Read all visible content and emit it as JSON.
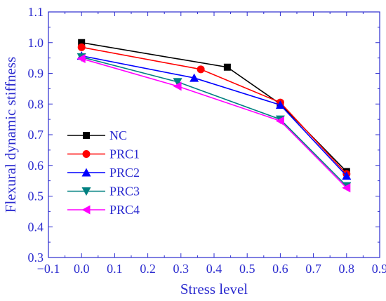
{
  "chart_data": {
    "type": "line",
    "xlabel": "Stress level",
    "ylabel": "Flexural dynamic stiffness",
    "xlim": [
      -0.1,
      0.9
    ],
    "ylim": [
      0.3,
      1.1
    ],
    "xticks": [
      -0.1,
      0.0,
      0.1,
      0.2,
      0.3,
      0.4,
      0.5,
      0.6,
      0.7,
      0.8,
      0.9
    ],
    "yticks": [
      0.3,
      0.4,
      0.5,
      0.6,
      0.7,
      0.8,
      0.9,
      1.0,
      1.1
    ],
    "xtick_labels": [
      "−0.1",
      "0.0",
      "0.1",
      "0.2",
      "0.3",
      "0.4",
      "0.5",
      "0.6",
      "0.7",
      "0.8",
      "0.9"
    ],
    "ytick_labels": [
      "0.3",
      "0.4",
      "0.5",
      "0.6",
      "0.7",
      "0.8",
      "0.9",
      "1.0",
      "1.1"
    ],
    "grid": false,
    "legend_position": "bottom-left",
    "axis_color": "#2b2bcf",
    "series": [
      {
        "name": "NC",
        "color": "#000000",
        "marker": "square",
        "x": [
          0.0,
          0.44,
          0.6,
          0.8
        ],
        "y": [
          1.0,
          0.92,
          0.8,
          0.58
        ]
      },
      {
        "name": "PRC1",
        "color": "#ff0000",
        "marker": "circle",
        "x": [
          0.0,
          0.36,
          0.6,
          0.8
        ],
        "y": [
          0.985,
          0.913,
          0.805,
          0.572
        ]
      },
      {
        "name": "PRC2",
        "color": "#0000ff",
        "marker": "triangle-up",
        "x": [
          0.0,
          0.34,
          0.6,
          0.8
        ],
        "y": [
          0.957,
          0.885,
          0.797,
          0.566
        ]
      },
      {
        "name": "PRC3",
        "color": "#008080",
        "marker": "triangle-down",
        "x": [
          0.0,
          0.29,
          0.6,
          0.8
        ],
        "y": [
          0.953,
          0.872,
          0.75,
          0.533
        ]
      },
      {
        "name": "PRC4",
        "color": "#ff00ff",
        "marker": "triangle-left",
        "x": [
          0.0,
          0.29,
          0.6,
          0.8
        ],
        "y": [
          0.948,
          0.858,
          0.745,
          0.527
        ]
      }
    ]
  }
}
